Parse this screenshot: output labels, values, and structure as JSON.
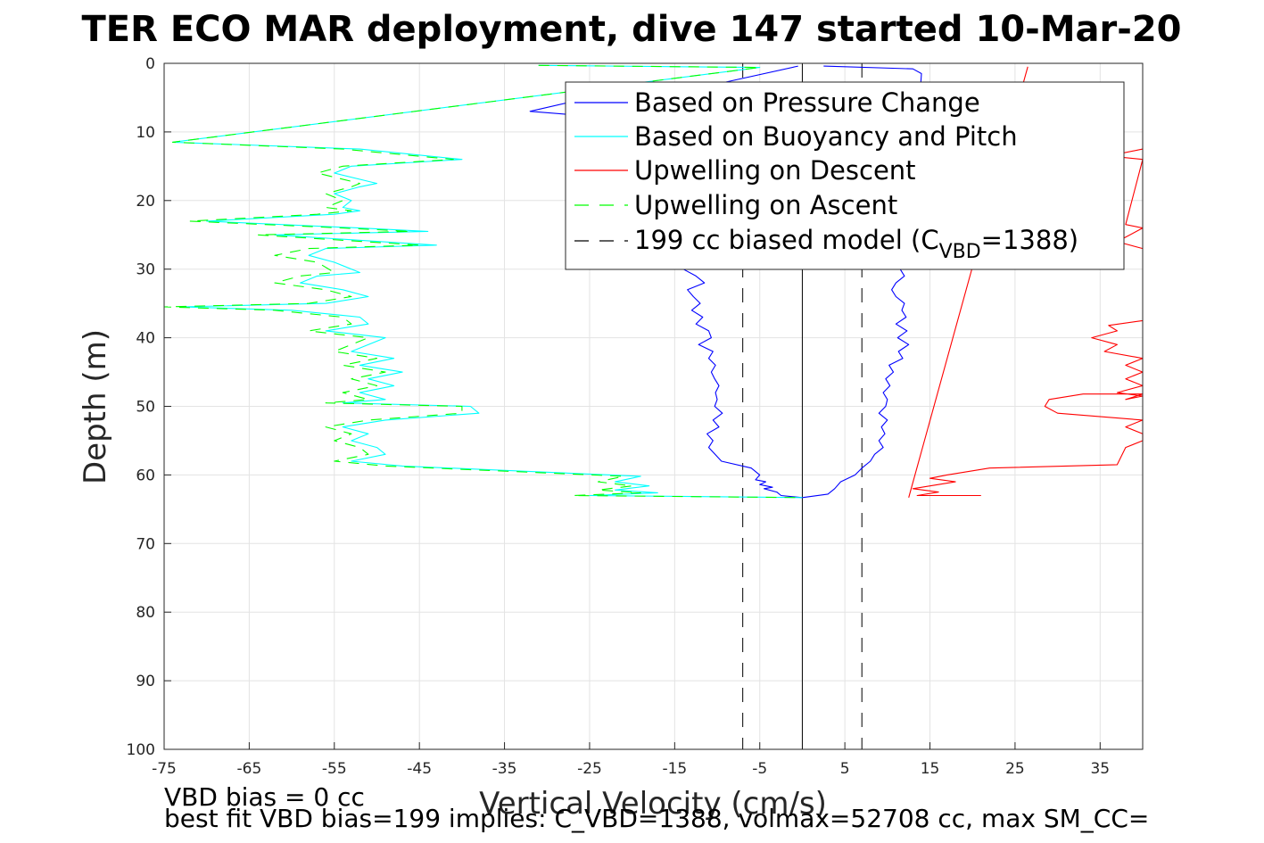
{
  "chart_data": {
    "type": "line",
    "title": "TER ECO MAR deployment, dive 147 started 10-Mar-20",
    "xlabel": "Vertical Velocity (cm/s)",
    "ylabel": "Depth (m)",
    "xlim": [
      -75,
      40
    ],
    "ylim": [
      0,
      100
    ],
    "y_reversed": true,
    "grid": true,
    "legend_position": "top-right",
    "xticks": [
      -75,
      -65,
      -55,
      -45,
      -35,
      -25,
      -15,
      -5,
      5,
      15,
      25,
      35
    ],
    "yticks": [
      0,
      10,
      20,
      30,
      40,
      50,
      60,
      70,
      80,
      90,
      100
    ],
    "legend": {
      "pressure": "Based on Pressure Change",
      "buoyancy": "Based on Buoyancy and Pitch",
      "descent": "Upwelling on Descent",
      "ascent": "Upwelling on Ascent",
      "model_pre": "199 cc biased model (C",
      "model_sub": "VBD",
      "model_post": "=1388)"
    },
    "colors": {
      "pressure": "#0000ff",
      "buoyancy": "#00ffff",
      "descent": "#ff0000",
      "ascent": "#00ff00",
      "model": "#000000"
    },
    "series": [
      {
        "key": "pressure_left",
        "style": "solid",
        "color": "#0000ff",
        "x": [
          -0.5,
          -10,
          -25,
          -32,
          -22,
          -16,
          -14.5,
          -13,
          -12,
          -14,
          -12.5,
          -11.5,
          -13.5,
          -12.8,
          -12,
          -13,
          -11.7,
          -12.5,
          -11,
          -10.7,
          -12.2,
          -10.5,
          -11,
          -10.2,
          -10.7,
          -10.3,
          -9.8,
          -10.2,
          -10,
          -10.3,
          -9.4,
          -10.5,
          -9.8,
          -11.2,
          -10.5,
          -11,
          -9.5,
          -6,
          -5,
          -5.5,
          -4.3,
          -5,
          -3.5,
          -4.5,
          -3,
          -2.5,
          0
        ],
        "y": [
          0.4,
          3,
          5,
          7,
          8,
          10,
          15,
          20,
          25,
          30,
          31,
          32,
          33,
          34,
          35,
          36,
          37,
          38,
          39,
          40,
          41,
          42,
          43,
          44,
          45,
          46,
          47,
          48,
          49,
          50,
          51,
          52,
          53,
          54,
          55,
          56,
          58,
          59,
          60,
          60.7,
          61,
          61.4,
          61.8,
          62,
          62.5,
          63,
          63.3
        ]
      },
      {
        "key": "pressure_right",
        "style": "solid",
        "color": "#0000ff",
        "x": [
          2.5,
          13,
          14,
          13.8,
          12.5,
          12,
          12.5,
          11.5,
          12,
          11,
          10.5,
          11,
          12,
          11.7,
          12.2,
          11,
          12.3,
          11.2,
          12.5,
          11.3,
          11.8,
          10.2,
          10.7,
          9.8,
          10.3,
          9.5,
          10,
          9.8,
          9,
          10,
          9.3,
          9.7,
          9,
          9.5,
          8.5,
          8,
          7,
          6.2,
          4.5,
          3.8,
          3,
          0
        ],
        "y": [
          0.4,
          0.8,
          1.5,
          5,
          10,
          20,
          25,
          30,
          31,
          32,
          33,
          34,
          35,
          36,
          37,
          38,
          39,
          40,
          41,
          42,
          43,
          44,
          45,
          46,
          47,
          48,
          49,
          50,
          51,
          52,
          53,
          54,
          55,
          56,
          57,
          58,
          59,
          60,
          61,
          62,
          62.8,
          63.3
        ]
      },
      {
        "key": "buoyancy",
        "style": "solid",
        "color": "#00ffff",
        "x": [
          -31,
          -5,
          -74,
          -52,
          -40,
          -53,
          -55,
          -50,
          -52,
          -55,
          -53,
          -54,
          -52,
          -55,
          -70,
          -52,
          -44,
          -62,
          -43,
          -56,
          -58,
          -55,
          -52,
          -57,
          -59,
          -54,
          -51,
          -56,
          -73,
          -60,
          -52,
          -51,
          -56,
          -49,
          -53,
          -48,
          -52,
          -47,
          -51,
          -48,
          -52,
          -49,
          -54,
          -39,
          -38,
          -49,
          -54,
          -51,
          -53,
          -50,
          -49,
          -53,
          -47,
          -19,
          -22,
          -18,
          -22,
          -17,
          -25,
          0
        ],
        "y": [
          0.3,
          0.6,
          11.5,
          12.5,
          14,
          15,
          16,
          17.5,
          18,
          19,
          20,
          21,
          21.5,
          22,
          23,
          24,
          24.5,
          25,
          26.5,
          27,
          28,
          29,
          30.5,
          31,
          32,
          33,
          34,
          35,
          35.5,
          36,
          37,
          38,
          39,
          40,
          42,
          43,
          44,
          45,
          46,
          47,
          48,
          49,
          49.5,
          50,
          51,
          52,
          53,
          54,
          55,
          56,
          57,
          58,
          58.7,
          60.2,
          61,
          61.6,
          62.2,
          62.6,
          63,
          63.3
        ]
      },
      {
        "key": "ascent",
        "style": "dashed",
        "color": "#00ff00",
        "x": [
          -31,
          -5,
          -74,
          -54,
          -41,
          -54,
          -57,
          -52,
          -53,
          -56,
          -54,
          -56,
          -53,
          -57,
          -72,
          -54,
          -46,
          -64,
          -45,
          -58,
          -62,
          -57,
          -55,
          -59,
          -62,
          -56,
          -53,
          -58,
          -75,
          -62,
          -54,
          -53,
          -58,
          -51,
          -55,
          -50,
          -54,
          -49,
          -53,
          -50,
          -54,
          -51,
          -56,
          -40,
          -40,
          -51,
          -56,
          -53,
          -55,
          -52,
          -51,
          -55,
          -49,
          -21,
          -24,
          -20,
          -24,
          -19,
          -27,
          0
        ],
        "y": [
          0.3,
          0.6,
          11.5,
          12.5,
          14,
          15,
          16,
          17.5,
          18,
          19,
          20,
          21,
          21.5,
          22,
          23,
          24,
          24.5,
          25,
          26.5,
          27,
          28,
          29,
          30.5,
          31,
          32,
          33,
          34,
          35,
          35.5,
          36,
          37,
          38,
          39,
          40,
          42,
          43,
          44,
          45,
          46,
          47,
          48,
          49,
          49.5,
          50,
          51,
          52,
          53,
          54,
          55,
          56,
          57,
          58,
          58.7,
          60.2,
          61,
          61.6,
          62.2,
          62.6,
          63,
          63.3
        ]
      },
      {
        "key": "descent_upper",
        "style": "solid",
        "color": "#ff0000",
        "x": [
          40,
          36,
          40,
          38,
          40,
          37,
          40
        ],
        "y": [
          12.5,
          13.5,
          14,
          23.5,
          24,
          26,
          27
        ]
      },
      {
        "key": "descent_line",
        "style": "solid",
        "color": "#ff0000",
        "x": [
          26.5,
          12.5
        ],
        "y": [
          0.5,
          63.3
        ]
      },
      {
        "key": "descent_lower",
        "style": "solid",
        "color": "#ff0000",
        "x": [
          40,
          36,
          37,
          34,
          37,
          35.5,
          40,
          38,
          40,
          38,
          40,
          37,
          40,
          38,
          40,
          33,
          29,
          28.5,
          30,
          40,
          38,
          40,
          40,
          38,
          37,
          22,
          17,
          15,
          18,
          13,
          16,
          13.5,
          21
        ],
        "y": [
          37.5,
          38.2,
          39,
          40,
          41,
          42,
          43,
          44,
          45,
          46,
          47,
          48,
          48.5,
          49,
          48.2,
          48.2,
          49,
          50,
          51,
          52,
          53,
          54,
          55,
          56,
          58.5,
          59,
          60,
          60.5,
          61,
          62,
          62.5,
          63,
          63
        ]
      }
    ],
    "model_lines": [
      {
        "x": -7,
        "style": "dashed"
      },
      {
        "x": 0,
        "style": "solid"
      },
      {
        "x": 7,
        "style": "dashed"
      }
    ],
    "footnotes": {
      "line1": "VBD bias = 0 cc",
      "line2": "best fit VBD bias=199 implies: C_VBD=1388, volmax=52708 cc, max SM_CC="
    }
  }
}
